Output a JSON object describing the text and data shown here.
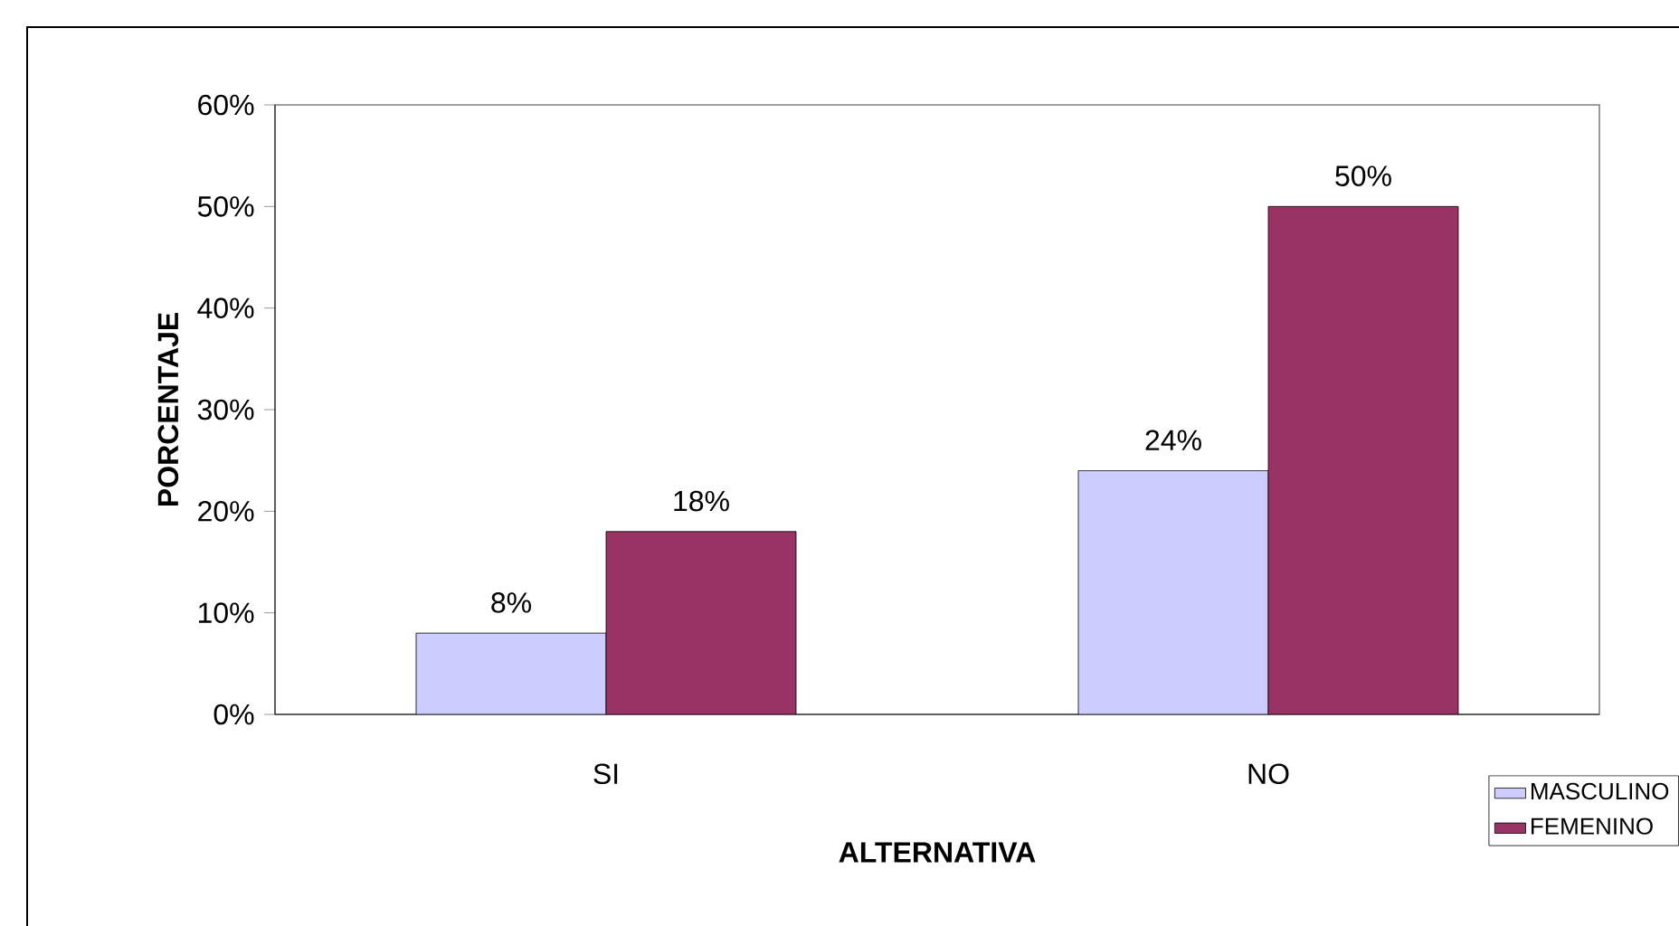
{
  "chart_data": {
    "type": "bar",
    "xlabel": "ALTERNATIVA",
    "ylabel": "PORCENTAJE",
    "categories": [
      "SI",
      "NO"
    ],
    "series": [
      {
        "name": "MASCULINO",
        "color": "#ccccff",
        "values": [
          8,
          24
        ],
        "value_labels": [
          "8%",
          "24%"
        ]
      },
      {
        "name": "FEMENINO",
        "color": "#993366",
        "values": [
          18,
          50
        ],
        "value_labels": [
          "18%",
          "50%"
        ]
      }
    ],
    "ylim": [
      0,
      60
    ],
    "yticks": [
      {
        "value": 0,
        "label": "0%"
      },
      {
        "value": 10,
        "label": "10%"
      },
      {
        "value": 20,
        "label": "20%"
      },
      {
        "value": 30,
        "label": "30%"
      },
      {
        "value": 40,
        "label": "40%"
      },
      {
        "value": 50,
        "label": "50%"
      },
      {
        "value": 60,
        "label": "60%"
      }
    ],
    "grid": false,
    "legend": "bottom right"
  }
}
